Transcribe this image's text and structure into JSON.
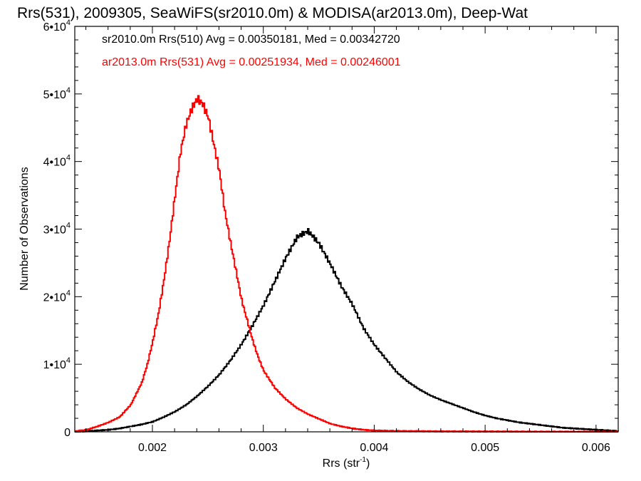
{
  "chart_data": {
    "type": "line",
    "step": true,
    "title": "Rrs(531), 2009305, SeaWiFS(sr2010.0m) & MODISA(ar2013.0m), Deep-Wat",
    "xlabel_main": "Rrs (str",
    "xlabel_sup": "-1",
    "xlabel_end": ")",
    "ylabel": "Number of Observations",
    "xlim": [
      0.0013,
      0.0062
    ],
    "ylim": [
      0,
      60000
    ],
    "x_ticks": [
      {
        "value": 0.002,
        "label": "0.002"
      },
      {
        "value": 0.003,
        "label": "0.003"
      },
      {
        "value": 0.004,
        "label": "0.004"
      },
      {
        "value": 0.005,
        "label": "0.005"
      },
      {
        "value": 0.006,
        "label": "0.006"
      }
    ],
    "y_ticks": [
      {
        "value": 0,
        "mantissa": "0",
        "exp": ""
      },
      {
        "value": 10000,
        "mantissa": "1•10",
        "exp": "4"
      },
      {
        "value": 20000,
        "mantissa": "2•10",
        "exp": "4"
      },
      {
        "value": 30000,
        "mantissa": "3•10",
        "exp": "4"
      },
      {
        "value": 40000,
        "mantissa": "4•10",
        "exp": "4"
      },
      {
        "value": 50000,
        "mantissa": "5•10",
        "exp": "4"
      },
      {
        "value": 60000,
        "mantissa": "6•10",
        "exp": "4"
      }
    ],
    "legend_placement": "top-left",
    "series": [
      {
        "name": "sr2010.0m Rrs(510) Avg = 0.00350181, Med = 0.00342720",
        "color": "#000000",
        "points": [
          [
            0.0013,
            0
          ],
          [
            0.0014,
            100
          ],
          [
            0.0015,
            200
          ],
          [
            0.0016,
            300
          ],
          [
            0.0017,
            500
          ],
          [
            0.0018,
            800
          ],
          [
            0.0019,
            1100
          ],
          [
            0.002,
            1500
          ],
          [
            0.0021,
            2200
          ],
          [
            0.0022,
            3000
          ],
          [
            0.0023,
            4000
          ],
          [
            0.0024,
            5300
          ],
          [
            0.0025,
            6800
          ],
          [
            0.0026,
            8500
          ],
          [
            0.0027,
            10600
          ],
          [
            0.0028,
            13000
          ],
          [
            0.0029,
            15800
          ],
          [
            0.003,
            18800
          ],
          [
            0.0031,
            22300
          ],
          [
            0.0032,
            25800
          ],
          [
            0.00325,
            27300
          ],
          [
            0.0033,
            28800
          ],
          [
            0.00335,
            29300
          ],
          [
            0.0034,
            29700
          ],
          [
            0.00345,
            28800
          ],
          [
            0.0035,
            27800
          ],
          [
            0.0036,
            24800
          ],
          [
            0.0037,
            21500
          ],
          [
            0.0038,
            18800
          ],
          [
            0.0039,
            15300
          ],
          [
            0.004,
            12800
          ],
          [
            0.0041,
            10800
          ],
          [
            0.0042,
            8800
          ],
          [
            0.0043,
            7400
          ],
          [
            0.0044,
            6300
          ],
          [
            0.0045,
            5400
          ],
          [
            0.0046,
            4700
          ],
          [
            0.0047,
            4100
          ],
          [
            0.0048,
            3500
          ],
          [
            0.0049,
            2900
          ],
          [
            0.005,
            2400
          ],
          [
            0.0051,
            2000
          ],
          [
            0.0052,
            1700
          ],
          [
            0.0053,
            1400
          ],
          [
            0.0054,
            1200
          ],
          [
            0.0055,
            1000
          ],
          [
            0.0056,
            800
          ],
          [
            0.0057,
            600
          ],
          [
            0.0058,
            500
          ],
          [
            0.0059,
            400
          ],
          [
            0.006,
            300
          ],
          [
            0.0061,
            200
          ],
          [
            0.0062,
            100
          ]
        ]
      },
      {
        "name": "ar2013.0m Rrs(531) Avg = 0.00251934, Med = 0.00246001",
        "color": "#ff0000",
        "points": [
          [
            0.0013,
            100
          ],
          [
            0.0014,
            300
          ],
          [
            0.0015,
            800
          ],
          [
            0.0016,
            1400
          ],
          [
            0.0017,
            2200
          ],
          [
            0.0018,
            4000
          ],
          [
            0.0019,
            7300
          ],
          [
            0.00195,
            10000
          ],
          [
            0.002,
            13500
          ],
          [
            0.00205,
            17500
          ],
          [
            0.0021,
            22500
          ],
          [
            0.00215,
            28300
          ],
          [
            0.0022,
            35000
          ],
          [
            0.00225,
            41500
          ],
          [
            0.0023,
            45500
          ],
          [
            0.00235,
            47800
          ],
          [
            0.0024,
            49300
          ],
          [
            0.00245,
            48500
          ],
          [
            0.0025,
            46500
          ],
          [
            0.00255,
            42500
          ],
          [
            0.0026,
            38500
          ],
          [
            0.00265,
            32500
          ],
          [
            0.0027,
            28000
          ],
          [
            0.00275,
            23800
          ],
          [
            0.0028,
            19500
          ],
          [
            0.00285,
            16500
          ],
          [
            0.0029,
            13500
          ],
          [
            0.00295,
            11000
          ],
          [
            0.003,
            9000
          ],
          [
            0.0031,
            6500
          ],
          [
            0.0032,
            4800
          ],
          [
            0.0033,
            3500
          ],
          [
            0.0034,
            2600
          ],
          [
            0.0035,
            1900
          ],
          [
            0.0036,
            1200
          ],
          [
            0.0037,
            800
          ],
          [
            0.0038,
            500
          ],
          [
            0.0039,
            300
          ],
          [
            0.004,
            200
          ],
          [
            0.0042,
            120
          ],
          [
            0.0045,
            80
          ],
          [
            0.005,
            50
          ],
          [
            0.0055,
            20
          ],
          [
            0.0062,
            0
          ]
        ]
      }
    ]
  }
}
